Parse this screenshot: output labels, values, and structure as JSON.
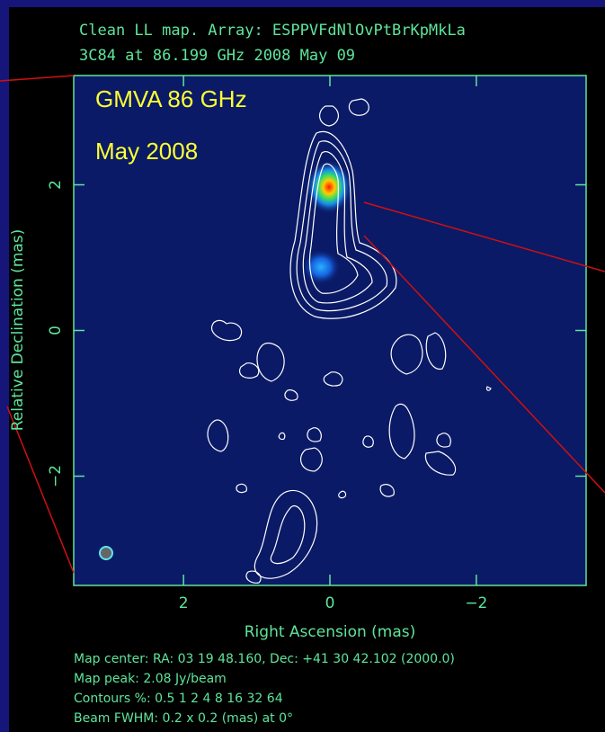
{
  "chart_data": {
    "type": "contour",
    "title": "Clean LL map.  Array:  ESPPVFdNlOvPtBrKpMkLa",
    "subtitle": "3C84 at 86.199 GHz 2008 May 09",
    "annotations": [
      "GMVA 86 GHz",
      "May 2008"
    ],
    "xlabel": "Right Ascension  (mas)",
    "ylabel": "Relative Declination  (mas)",
    "xlim": [
      3.5,
      -3.5
    ],
    "ylim": [
      -3.5,
      3.5
    ],
    "xticks": [
      2,
      0,
      {
        "value": -2,
        "label": "−2"
      }
    ],
    "yticks": [
      {
        "value": -2,
        "label": "−2"
      },
      0,
      2
    ],
    "notes": [
      "Map center:  RA: 03 19 48.160,  Dec: +41 30 42.102 (2000.0)",
      "Map peak: 2.08 Jy/beam",
      "Contours %: 0.5 1 2 4 8 16 32 64",
      "Beam FWHM: 0.2 x 0.2 (mas) at 0°"
    ]
  }
}
